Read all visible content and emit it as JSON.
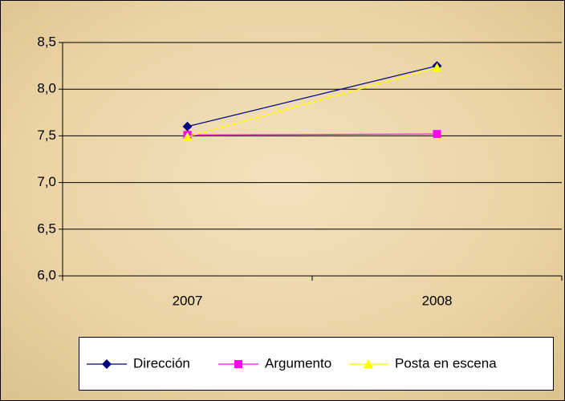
{
  "chart_data": {
    "type": "line",
    "categories": [
      "2007",
      "2008"
    ],
    "series": [
      {
        "name": "Dirección",
        "color": "#000080",
        "marker": "diamond",
        "values": [
          7.6,
          8.25
        ]
      },
      {
        "name": "Argumento",
        "color": "#ff00ff",
        "marker": "square",
        "values": [
          7.51,
          7.52
        ]
      },
      {
        "name": "Posta en escena",
        "color": "#ffff00",
        "marker": "triangle",
        "values": [
          7.49,
          8.23
        ]
      }
    ],
    "ylim": [
      6,
      8.5
    ],
    "yticks": [
      {
        "value": 6,
        "label": "6,0"
      },
      {
        "value": 6.5,
        "label": "6,5"
      },
      {
        "value": 7,
        "label": "7,0"
      },
      {
        "value": 7.5,
        "label": "7,5"
      },
      {
        "value": 8,
        "label": "8,0"
      },
      {
        "value": 8.5,
        "label": "8,5"
      }
    ],
    "grid": true,
    "legend": "bottom"
  }
}
